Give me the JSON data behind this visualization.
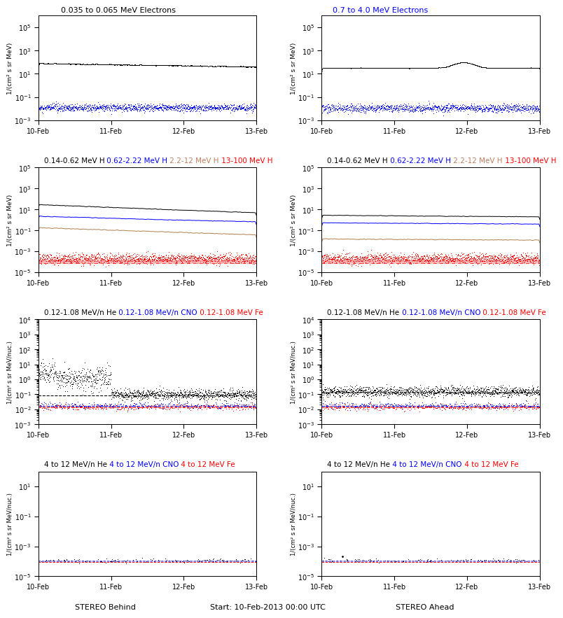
{
  "row0_title_black": "0.035 to 0.065 MeV Electrons",
  "row0_title_blue": "0.7 to 4.0 MeV Electrons",
  "row1_title_parts": [
    {
      "text": "0.14-0.62 MeV H",
      "color": "black"
    },
    {
      "text": " 0.62-2.22 MeV H",
      "color": "blue"
    },
    {
      "text": " 2.2-12 MeV H",
      "color": "#c08060"
    },
    {
      "text": " 13-100 MeV H",
      "color": "red"
    }
  ],
  "row2_title_parts": [
    {
      "text": "0.12-1.08 MeV/n He",
      "color": "black"
    },
    {
      "text": " 0.12-1.08 MeV/n CNO",
      "color": "blue"
    },
    {
      "text": " 0.12-1.08 MeV Fe",
      "color": "red"
    }
  ],
  "row3_title_parts": [
    {
      "text": "4 to 12 MeV/n He",
      "color": "black"
    },
    {
      "text": " 4 to 12 MeV/n CNO",
      "color": "blue"
    },
    {
      "text": " 4 to 12 MeV Fe",
      "color": "red"
    }
  ],
  "ylabel_mev": "1/(cm² s sr MeV)",
  "ylabel_nucmev": "1/(cm² s sr MeV/nuc.)",
  "xlabel_center": "Start: 10-Feb-2013 00:00 UTC",
  "label_left": "STEREO Behind",
  "label_right": "STEREO Ahead",
  "xtick_labels": [
    "10-Feb",
    "11-Feb",
    "12-Feb",
    "13-Feb"
  ],
  "brown_color": "#b08050"
}
